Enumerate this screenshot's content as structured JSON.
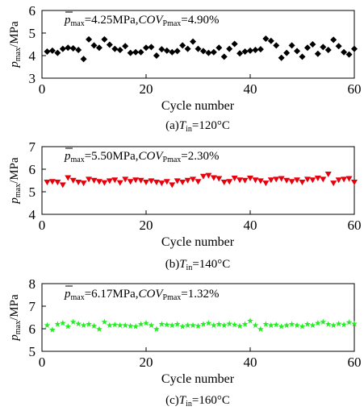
{
  "figure": {
    "panels": [
      {
        "caption_prefix": "(a)",
        "caption_var": "T",
        "caption_sub": "in",
        "caption_value": "=120°C",
        "annotation": {
          "pbar": "p",
          "pbar_sub": "max",
          "pbar_value": "=4.25MPa,",
          "cov": "COV",
          "cov_sub": "Pmax",
          "cov_value": "=4.90%"
        },
        "ylabel_var": "p",
        "ylabel_sub": "max",
        "ylabel_unit": "/MPa",
        "xlabel": "Cycle number",
        "marker": "diamond",
        "color": "#000000"
      },
      {
        "caption_prefix": "(b)",
        "caption_var": "T",
        "caption_sub": "in",
        "caption_value": "=140°C",
        "annotation": {
          "pbar": "p",
          "pbar_sub": "max",
          "pbar_value": "=5.50MPa,",
          "cov": "COV",
          "cov_sub": "Pmax",
          "cov_value": "=2.30%"
        },
        "ylabel_var": "p",
        "ylabel_sub": "max",
        "ylabel_unit": "/MPa",
        "xlabel": "Cycle number",
        "marker": "triangle-down",
        "color": "#e8000b"
      },
      {
        "caption_prefix": "(c)",
        "caption_var": "T",
        "caption_sub": "in",
        "caption_value": "=160°C",
        "annotation": {
          "pbar": "p",
          "pbar_sub": "max",
          "pbar_value": "=6.17MPa,",
          "cov": "COV",
          "cov_sub": "Pmax",
          "cov_value": "=1.32%"
        },
        "ylabel_var": "p",
        "ylabel_sub": "max",
        "ylabel_unit": "/MPa",
        "xlabel": "Cycle number",
        "marker": "star",
        "color": "#22ee22"
      }
    ]
  },
  "chart_data": [
    {
      "type": "scatter",
      "xlabel": "Cycle number",
      "ylabel": "pmax/MPa",
      "xlim": [
        0,
        60
      ],
      "ylim": [
        3,
        6
      ],
      "xticks": [
        0,
        20,
        40,
        60
      ],
      "yticks": [
        3,
        4,
        5,
        6
      ],
      "grid": false,
      "x": [
        1,
        2,
        3,
        4,
        5,
        6,
        7,
        8,
        9,
        10,
        11,
        12,
        13,
        14,
        15,
        16,
        17,
        18,
        19,
        20,
        21,
        22,
        23,
        24,
        25,
        26,
        27,
        28,
        29,
        30,
        31,
        32,
        33,
        34,
        35,
        36,
        37,
        38,
        39,
        40,
        41,
        42,
        43,
        44,
        45,
        46,
        47,
        48,
        49,
        50,
        51,
        52,
        53,
        54,
        55,
        56,
        57,
        58,
        59,
        60
      ],
      "series": [
        {
          "values": [
            4.18,
            4.22,
            4.12,
            4.3,
            4.35,
            4.32,
            4.25,
            3.85,
            4.72,
            4.45,
            4.35,
            4.72,
            4.48,
            4.3,
            4.25,
            4.42,
            4.12,
            4.15,
            4.15,
            4.35,
            4.38,
            4.0,
            4.28,
            4.22,
            4.15,
            4.2,
            4.45,
            4.3,
            4.62,
            4.3,
            4.2,
            4.12,
            4.15,
            4.35,
            3.95,
            4.3,
            4.52,
            4.1,
            4.18,
            4.22,
            4.25,
            4.28,
            4.75,
            4.65,
            4.45,
            3.9,
            4.12,
            4.45,
            4.2,
            3.95,
            4.35,
            4.5,
            4.08,
            4.38,
            4.25,
            4.7,
            4.42,
            4.15,
            4.05,
            4.3
          ]
        }
      ]
    },
    {
      "type": "scatter",
      "xlabel": "Cycle number",
      "ylabel": "pmax/MPa",
      "xlim": [
        0,
        60
      ],
      "ylim": [
        4,
        7
      ],
      "xticks": [
        0,
        20,
        40,
        60
      ],
      "yticks": [
        4,
        5,
        6,
        7
      ],
      "grid": false,
      "x": [
        1,
        2,
        3,
        4,
        5,
        6,
        7,
        8,
        9,
        10,
        11,
        12,
        13,
        14,
        15,
        16,
        17,
        18,
        19,
        20,
        21,
        22,
        23,
        24,
        25,
        26,
        27,
        28,
        29,
        30,
        31,
        32,
        33,
        34,
        35,
        36,
        37,
        38,
        39,
        40,
        41,
        42,
        43,
        44,
        45,
        46,
        47,
        48,
        49,
        50,
        51,
        52,
        53,
        54,
        55,
        56,
        57,
        58,
        59,
        60
      ],
      "series": [
        {
          "values": [
            5.42,
            5.45,
            5.42,
            5.3,
            5.62,
            5.5,
            5.42,
            5.38,
            5.55,
            5.5,
            5.45,
            5.4,
            5.48,
            5.52,
            5.4,
            5.55,
            5.45,
            5.52,
            5.5,
            5.42,
            5.48,
            5.42,
            5.38,
            5.45,
            5.3,
            5.48,
            5.42,
            5.5,
            5.55,
            5.45,
            5.68,
            5.72,
            5.62,
            5.58,
            5.42,
            5.45,
            5.6,
            5.52,
            5.5,
            5.6,
            5.52,
            5.48,
            5.38,
            5.52,
            5.55,
            5.58,
            5.5,
            5.45,
            5.52,
            5.42,
            5.55,
            5.52,
            5.6,
            5.55,
            5.78,
            5.38,
            5.52,
            5.55,
            5.58,
            5.42
          ]
        }
      ]
    },
    {
      "type": "scatter",
      "xlabel": "Cycle number",
      "ylabel": "pmax/MPa",
      "xlim": [
        0,
        60
      ],
      "ylim": [
        5,
        8
      ],
      "xticks": [
        0,
        20,
        40,
        60
      ],
      "yticks": [
        5,
        6,
        7,
        8
      ],
      "grid": false,
      "x": [
        1,
        2,
        3,
        4,
        5,
        6,
        7,
        8,
        9,
        10,
        11,
        12,
        13,
        14,
        15,
        16,
        17,
        18,
        19,
        20,
        21,
        22,
        23,
        24,
        25,
        26,
        27,
        28,
        29,
        30,
        31,
        32,
        33,
        34,
        35,
        36,
        37,
        38,
        39,
        40,
        41,
        42,
        43,
        44,
        45,
        46,
        47,
        48,
        49,
        50,
        51,
        52,
        53,
        54,
        55,
        56,
        57,
        58,
        59,
        60
      ],
      "series": [
        {
          "values": [
            6.15,
            5.95,
            6.2,
            6.25,
            6.1,
            6.3,
            6.22,
            6.15,
            6.2,
            6.12,
            5.98,
            6.3,
            6.15,
            6.18,
            6.15,
            6.15,
            6.12,
            6.1,
            6.2,
            6.25,
            6.15,
            5.98,
            6.2,
            6.18,
            6.15,
            6.2,
            6.1,
            6.15,
            6.15,
            6.12,
            6.2,
            6.25,
            6.15,
            6.2,
            6.15,
            6.22,
            6.18,
            6.12,
            6.2,
            6.35,
            6.15,
            5.98,
            6.2,
            6.15,
            6.18,
            6.1,
            6.15,
            6.2,
            6.15,
            6.1,
            6.2,
            6.15,
            6.25,
            6.3,
            6.2,
            6.15,
            6.22,
            6.18,
            6.28,
            6.22
          ]
        }
      ]
    }
  ]
}
